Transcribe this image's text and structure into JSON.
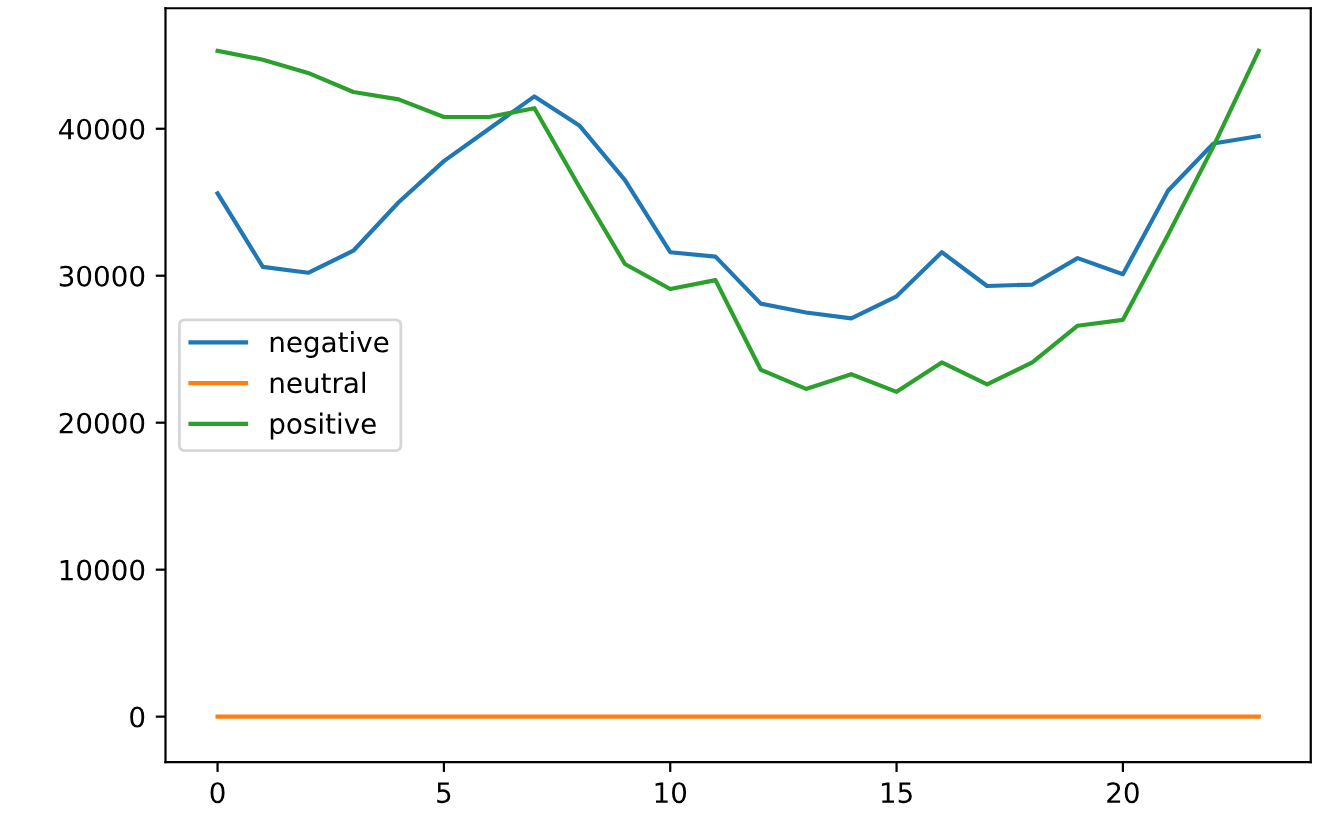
{
  "chart_data": {
    "type": "line",
    "x": [
      0,
      1,
      2,
      3,
      4,
      5,
      6,
      7,
      8,
      9,
      10,
      11,
      12,
      13,
      14,
      15,
      16,
      17,
      18,
      19,
      20,
      21,
      22,
      23
    ],
    "series": [
      {
        "name": "negative",
        "color": "#1f77b4",
        "values": [
          35600,
          30600,
          30200,
          31700,
          35000,
          37800,
          40000,
          42200,
          40200,
          36500,
          31600,
          31300,
          28100,
          27500,
          27100,
          28600,
          31600,
          29300,
          29400,
          31200,
          30100,
          35800,
          39000,
          39500
        ]
      },
      {
        "name": "neutral",
        "color": "#ff7f0e",
        "values": [
          0,
          0,
          0,
          0,
          0,
          0,
          0,
          0,
          0,
          0,
          0,
          0,
          0,
          0,
          0,
          0,
          0,
          0,
          0,
          0,
          0,
          0,
          0,
          0
        ]
      },
      {
        "name": "positive",
        "color": "#2ca02c",
        "values": [
          45300,
          44700,
          43800,
          42500,
          42000,
          40800,
          40800,
          41400,
          36000,
          30800,
          29100,
          29700,
          23600,
          22300,
          23300,
          22100,
          24100,
          22600,
          24100,
          26600,
          27000,
          32800,
          38800,
          45300
        ]
      }
    ],
    "xlim": [
      -1.15,
      24.15
    ],
    "ylim": [
      -3100,
      48200
    ],
    "xticks": [
      0,
      5,
      10,
      15,
      20
    ],
    "yticks": [
      0,
      10000,
      20000,
      30000,
      40000
    ],
    "grid": false,
    "legend": "left",
    "marker": "none",
    "line_style": "solid"
  }
}
